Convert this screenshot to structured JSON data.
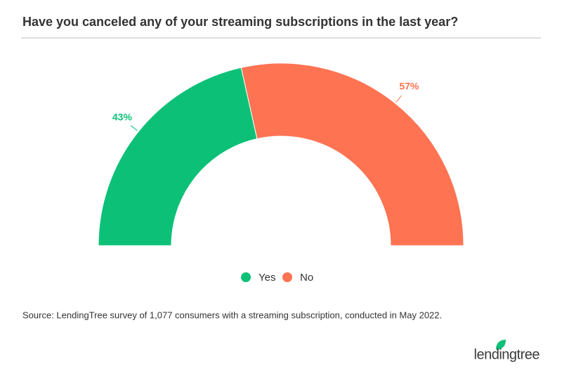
{
  "chart_data": {
    "type": "pie",
    "title": "Have you canceled any of your streaming subscriptions in the last year?",
    "categories": [
      "Yes",
      "No"
    ],
    "values": [
      43,
      57
    ],
    "value_labels": [
      "43%",
      "57%"
    ],
    "colors": [
      "#0cc177",
      "#fe7352"
    ],
    "source": "Source: LendingTree survey of 1,077 consumers with a streaming subscription, conducted in May 2022."
  },
  "logo": "lendingtree"
}
